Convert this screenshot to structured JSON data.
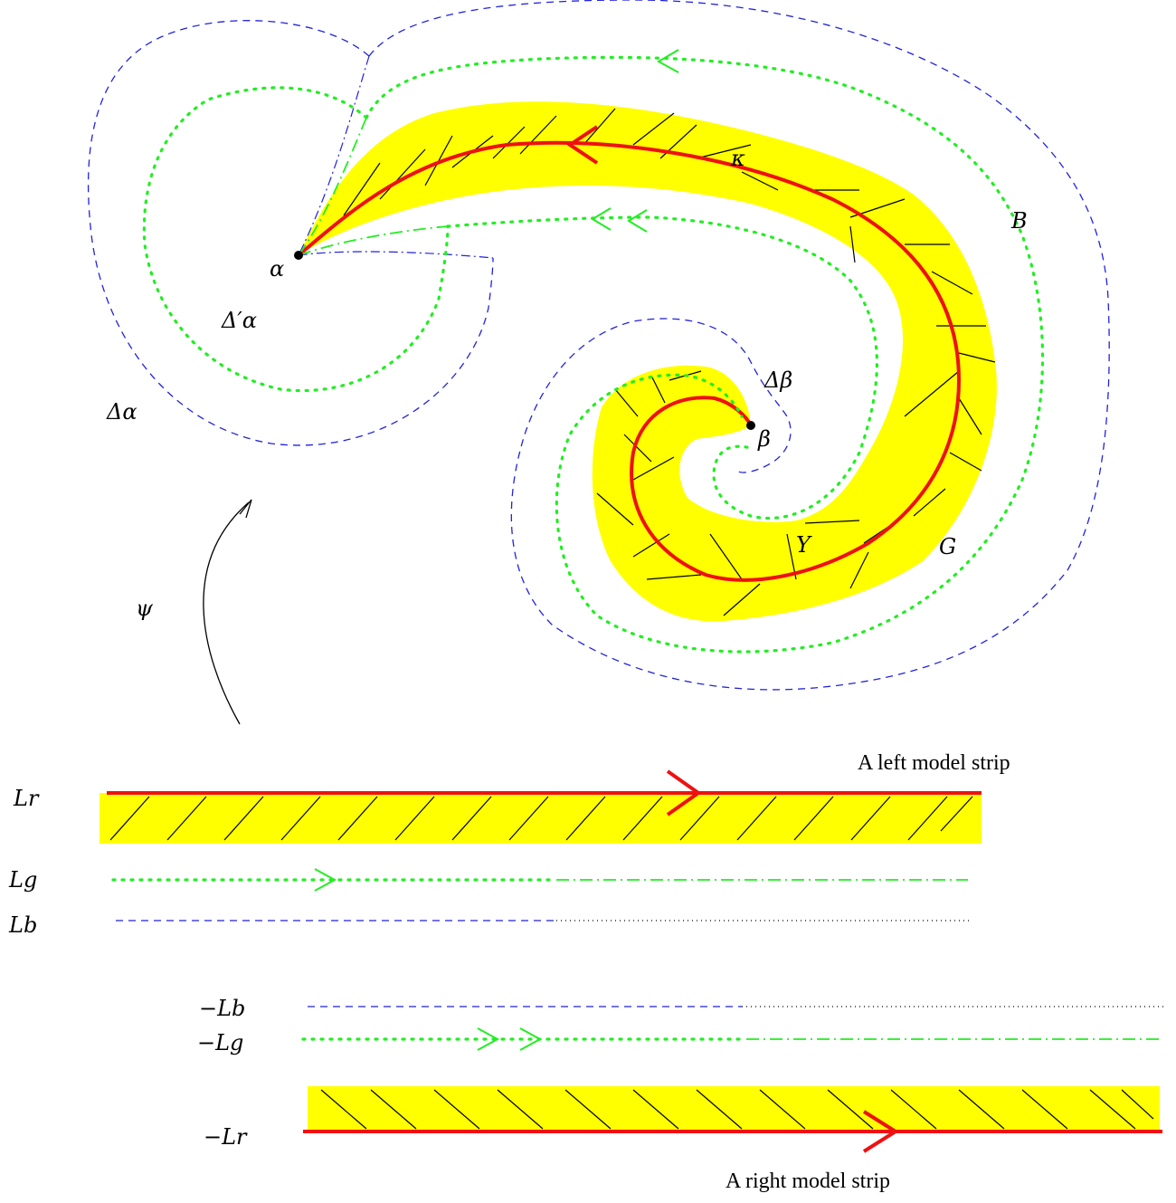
{
  "labels": {
    "alpha": "α",
    "beta": "β",
    "kappa": "κ",
    "B": "B",
    "G": "G",
    "Y": "Y",
    "delta_alpha": "Δα",
    "delta_alpha_prime": "Δ′α",
    "delta_beta": "Δβ",
    "psi": "ψ",
    "L_r": "Lr",
    "L_g": "Lg",
    "L_b": "Lb",
    "neg_L_b": "−Lb",
    "neg_L_g": "−Lg",
    "neg_L_r": "−Lr"
  },
  "captions": {
    "left_strip": "A left model strip",
    "right_strip": "A right model strip"
  },
  "colors": {
    "yellow": "#ffff00",
    "red": "#ee1111",
    "green": "#22ee22",
    "blue": "#2222dd"
  }
}
